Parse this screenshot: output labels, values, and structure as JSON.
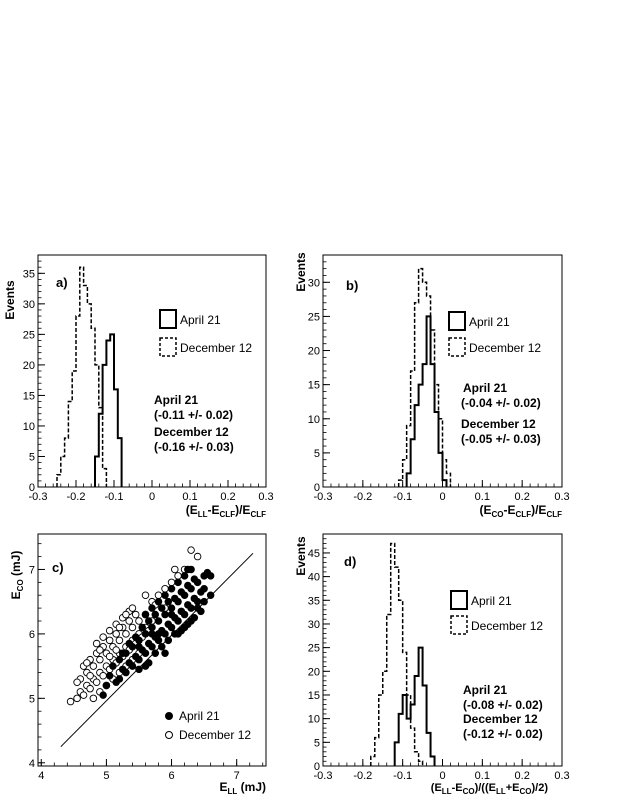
{
  "chart_data": [
    {
      "type": "histogram",
      "label": "a)",
      "xlabel": {
        "main": "(E",
        "sub1": "LL",
        "mid1": "-E",
        "sub2": "CLF",
        "mid2": ")/E",
        "sub3": "CLF",
        "end": ""
      },
      "ylabel": "Events",
      "xlim": [
        -0.3,
        0.3
      ],
      "ylim": [
        0,
        38
      ],
      "xticks": [
        "-0.3",
        "-0.2",
        "-0.1",
        "0",
        "0.1",
        "0.2",
        "0.3"
      ],
      "yticks": [
        "0",
        "5",
        "10",
        "15",
        "20",
        "25",
        "30",
        "35"
      ],
      "bin_width": 0.01,
      "series": [
        {
          "name": "April 21",
          "style": "solid",
          "bin_start": -0.15,
          "counts": [
            5,
            12,
            20,
            24,
            25,
            16,
            8
          ]
        },
        {
          "name": "December 12",
          "style": "dashed",
          "bin_start": -0.25,
          "counts": [
            2,
            5,
            8,
            14,
            19,
            28,
            36,
            33,
            30,
            26,
            20,
            13,
            3
          ]
        }
      ],
      "annotations": [
        {
          "name": "April 21",
          "value": "(-0.11 +/- 0.02)"
        },
        {
          "name": "December 12",
          "value": "(-0.16 +/- 0.03)"
        }
      ]
    },
    {
      "type": "histogram",
      "label": "b)",
      "xlabel": {
        "main": "(E",
        "sub1": "CO",
        "mid1": "-E",
        "sub2": "CLF",
        "mid2": ")/E",
        "sub3": "CLF",
        "end": ""
      },
      "ylabel": "Events",
      "xlim": [
        -0.3,
        0.3
      ],
      "ylim": [
        0,
        34
      ],
      "xticks": [
        "-0.3",
        "-0.2",
        "-0.1",
        "0",
        "0.1",
        "0.2",
        "0.3"
      ],
      "yticks": [
        "0",
        "5",
        "10",
        "15",
        "20",
        "25",
        "30"
      ],
      "bin_width": 0.01,
      "series": [
        {
          "name": "April 21",
          "style": "solid",
          "bin_start": -0.09,
          "counts": [
            2,
            7,
            12,
            15,
            18,
            25,
            18,
            11,
            5,
            1
          ]
        },
        {
          "name": "December 12",
          "style": "dashed",
          "bin_start": -0.11,
          "counts": [
            1,
            4,
            9,
            17,
            27,
            32,
            30,
            28,
            23,
            15,
            10,
            4,
            2
          ]
        }
      ],
      "annotations": [
        {
          "name": "April 21",
          "value": "(-0.04 +/- 0.02)"
        },
        {
          "name": "December 12",
          "value": "(-0.05 +/- 0.03)"
        }
      ]
    },
    {
      "type": "scatter",
      "label": "c)",
      "xlabel": {
        "main": "E",
        "sub": "LL",
        "end": " (mJ)"
      },
      "ylabel": {
        "main": "E",
        "sub": "CO",
        "end": " (mJ)"
      },
      "xlim": [
        3.95,
        7.45
      ],
      "ylim": [
        3.95,
        7.55
      ],
      "xticks": [
        "4",
        "5",
        "6",
        "7"
      ],
      "yticks": [
        "4",
        "5",
        "6",
        "7"
      ],
      "line": {
        "from": [
          4.3,
          4.25
        ],
        "to": [
          7.25,
          7.25
        ]
      },
      "series": [
        {
          "name": "April 21",
          "marker": "filled",
          "points": [
            [
              5.2,
              5.6
            ],
            [
              5.3,
              5.7
            ],
            [
              5.4,
              5.8
            ],
            [
              5.5,
              5.9
            ],
            [
              5.6,
              6.0
            ],
            [
              5.7,
              6.1
            ],
            [
              5.8,
              6.2
            ],
            [
              5.9,
              6.3
            ],
            [
              6.0,
              6.4
            ],
            [
              6.1,
              6.5
            ],
            [
              6.2,
              6.6
            ],
            [
              6.3,
              6.7
            ],
            [
              6.4,
              6.8
            ],
            [
              6.5,
              6.9
            ],
            [
              6.55,
              6.95
            ],
            [
              6.6,
              6.6
            ],
            [
              5.25,
              5.45
            ],
            [
              5.35,
              5.55
            ],
            [
              5.45,
              5.65
            ],
            [
              5.55,
              5.75
            ],
            [
              5.65,
              5.85
            ],
            [
              5.75,
              5.95
            ],
            [
              5.85,
              6.05
            ],
            [
              5.95,
              6.15
            ],
            [
              6.05,
              6.25
            ],
            [
              6.15,
              6.35
            ],
            [
              6.25,
              6.45
            ],
            [
              6.35,
              6.55
            ],
            [
              6.45,
              6.65
            ],
            [
              5.1,
              5.5
            ],
            [
              5.2,
              5.3
            ],
            [
              5.3,
              5.4
            ],
            [
              5.4,
              5.5
            ],
            [
              5.5,
              5.6
            ],
            [
              5.6,
              5.7
            ],
            [
              5.7,
              5.8
            ],
            [
              5.8,
              5.9
            ],
            [
              5.9,
              6.0
            ],
            [
              6.0,
              6.1
            ],
            [
              6.1,
              6.2
            ],
            [
              6.2,
              6.3
            ],
            [
              6.3,
              6.4
            ],
            [
              5.6,
              6.3
            ],
            [
              5.7,
              6.4
            ],
            [
              5.8,
              6.5
            ],
            [
              5.9,
              6.6
            ],
            [
              6.0,
              6.7
            ],
            [
              6.1,
              6.8
            ],
            [
              6.2,
              6.9
            ],
            [
              6.3,
              7.0
            ],
            [
              6.4,
              6.5
            ],
            [
              6.5,
              6.7
            ],
            [
              5.5,
              5.45
            ],
            [
              5.65,
              5.55
            ],
            [
              5.75,
              5.7
            ],
            [
              5.85,
              5.8
            ],
            [
              5.95,
              5.9
            ],
            [
              6.05,
              6.0
            ],
            [
              6.15,
              6.05
            ],
            [
              6.25,
              6.15
            ],
            [
              6.35,
              6.25
            ],
            [
              6.45,
              6.35
            ],
            [
              5.35,
              5.85
            ],
            [
              5.45,
              5.95
            ],
            [
              5.55,
              6.1
            ],
            [
              5.65,
              6.2
            ],
            [
              5.75,
              6.3
            ],
            [
              5.85,
              6.4
            ],
            [
              5.95,
              6.5
            ],
            [
              6.05,
              6.55
            ],
            [
              6.15,
              6.65
            ],
            [
              6.25,
              6.75
            ],
            [
              6.35,
              6.85
            ],
            [
              5.0,
              5.2
            ],
            [
              4.95,
              5.05
            ],
            [
              5.05,
              5.35
            ],
            [
              5.15,
              5.25
            ],
            [
              5.25,
              5.7
            ],
            [
              5.6,
              5.5
            ],
            [
              5.8,
              6.0
            ],
            [
              6.0,
              6.3
            ],
            [
              6.2,
              6.1
            ],
            [
              6.4,
              6.4
            ],
            [
              6.1,
              6.0
            ],
            [
              5.9,
              5.7
            ],
            [
              6.3,
              6.2
            ],
            [
              6.5,
              6.5
            ],
            [
              5.7,
              6.0
            ],
            [
              5.5,
              5.8
            ],
            [
              6.6,
              6.9
            ],
            [
              6.25,
              7.0
            ]
          ]
        },
        {
          "name": "December 12",
          "marker": "open",
          "points": [
            [
              4.45,
              4.95
            ],
            [
              4.55,
              5.0
            ],
            [
              4.6,
              5.1
            ],
            [
              4.65,
              5.05
            ],
            [
              4.7,
              5.2
            ],
            [
              4.75,
              5.15
            ],
            [
              4.8,
              5.3
            ],
            [
              4.85,
              5.25
            ],
            [
              4.9,
              5.4
            ],
            [
              4.95,
              5.35
            ],
            [
              5.0,
              5.5
            ],
            [
              5.05,
              5.45
            ],
            [
              5.1,
              5.6
            ],
            [
              5.15,
              5.55
            ],
            [
              5.2,
              5.7
            ],
            [
              5.25,
              5.65
            ],
            [
              5.3,
              5.8
            ],
            [
              5.35,
              5.75
            ],
            [
              5.4,
              5.9
            ],
            [
              5.45,
              5.85
            ],
            [
              5.5,
              6.0
            ],
            [
              5.55,
              5.95
            ],
            [
              5.6,
              6.1
            ],
            [
              5.65,
              6.05
            ],
            [
              5.7,
              6.2
            ],
            [
              4.6,
              5.3
            ],
            [
              4.7,
              5.4
            ],
            [
              4.8,
              5.5
            ],
            [
              4.9,
              5.6
            ],
            [
              5.0,
              5.7
            ],
            [
              5.1,
              5.8
            ],
            [
              5.2,
              5.9
            ],
            [
              5.3,
              6.0
            ],
            [
              5.4,
              6.1
            ],
            [
              5.5,
              6.2
            ],
            [
              5.6,
              6.3
            ],
            [
              4.75,
              5.6
            ],
            [
              4.85,
              5.7
            ],
            [
              4.95,
              5.8
            ],
            [
              5.05,
              5.9
            ],
            [
              5.15,
              6.0
            ],
            [
              5.25,
              6.1
            ],
            [
              5.35,
              6.2
            ],
            [
              5.45,
              6.3
            ],
            [
              4.65,
              5.5
            ],
            [
              4.8,
              5.0
            ],
            [
              4.9,
              5.1
            ],
            [
              5.0,
              5.2
            ],
            [
              5.1,
              5.3
            ],
            [
              5.2,
              5.4
            ],
            [
              5.3,
              5.5
            ],
            [
              5.4,
              5.6
            ],
            [
              5.5,
              5.7
            ],
            [
              4.85,
              5.85
            ],
            [
              4.95,
              5.95
            ],
            [
              5.05,
              6.05
            ],
            [
              5.15,
              6.15
            ],
            [
              5.25,
              6.25
            ],
            [
              5.35,
              6.35
            ],
            [
              5.7,
              6.5
            ],
            [
              5.8,
              6.6
            ],
            [
              5.9,
              6.7
            ],
            [
              6.0,
              6.8
            ],
            [
              6.1,
              6.9
            ],
            [
              6.2,
              7.0
            ],
            [
              5.6,
              6.6
            ],
            [
              5.75,
              6.45
            ],
            [
              6.05,
              7.0
            ],
            [
              5.9,
              6.4
            ],
            [
              4.55,
              5.25
            ],
            [
              4.7,
              5.55
            ],
            [
              5.05,
              5.65
            ],
            [
              5.2,
              6.1
            ],
            [
              6.3,
              7.3
            ],
            [
              6.4,
              7.2
            ],
            [
              5.4,
              6.4
            ],
            [
              5.15,
              5.75
            ],
            [
              4.9,
              5.75
            ],
            [
              5.3,
              6.3
            ],
            [
              4.75,
              5.35
            ]
          ]
        }
      ]
    },
    {
      "type": "histogram",
      "label": "d)",
      "xlabel": {
        "main": "(E",
        "sub1": "LL",
        "mid1": "-E",
        "sub2": "CO",
        "mid2": ")/((E",
        "sub3": "LL",
        "mid3": "+E",
        "sub4": "CO",
        "end": ")/2)"
      },
      "ylabel": "Events",
      "xlim": [
        -0.3,
        0.3
      ],
      "ylim": [
        0,
        49
      ],
      "xticks": [
        "-0.3",
        "-0.2",
        "-0.1",
        "0",
        "0.1",
        "0.2",
        "0.3"
      ],
      "yticks": [
        "0",
        "5",
        "10",
        "15",
        "20",
        "25",
        "30",
        "35",
        "40",
        "45"
      ],
      "bin_width": 0.01,
      "series": [
        {
          "name": "April 21",
          "style": "solid",
          "bin_start": -0.12,
          "counts": [
            5,
            11,
            15,
            10,
            13,
            19,
            25,
            17,
            7,
            2
          ]
        },
        {
          "name": "December 12",
          "style": "dashed",
          "bin_start": -0.18,
          "counts": [
            2,
            6,
            15,
            20,
            32,
            47,
            42,
            35,
            24,
            15,
            8,
            3,
            1
          ]
        }
      ],
      "annotations": [
        {
          "name": "April 21",
          "value": "(-0.08 +/- 0.02)"
        },
        {
          "name": "December 12",
          "value": "(-0.12 +/- 0.02)"
        }
      ]
    }
  ]
}
